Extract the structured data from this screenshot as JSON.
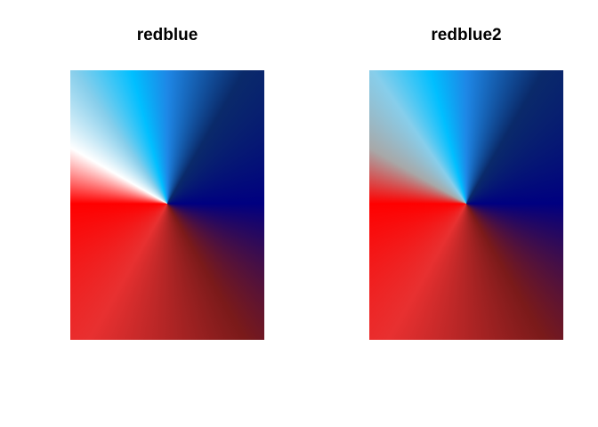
{
  "panels": [
    {
      "title": "redblue",
      "stops": [
        {
          "angle": 0,
          "color": "#1E87E6"
        },
        {
          "angle": 30,
          "color": "#0A2A6A"
        },
        {
          "angle": 90,
          "color": "#000080"
        },
        {
          "angle": 150,
          "color": "#7A1A1A"
        },
        {
          "angle": 210,
          "color": "#E83030"
        },
        {
          "angle": 270,
          "color": "#FF0000"
        },
        {
          "angle": 300,
          "color": "#FFFFFF"
        },
        {
          "angle": 325,
          "color": "#87CEEB"
        },
        {
          "angle": 345,
          "color": "#00BFFF"
        },
        {
          "angle": 360,
          "color": "#1E87E6"
        }
      ]
    },
    {
      "title": "redblue2",
      "stops": [
        {
          "angle": 0,
          "color": "#1E87E6"
        },
        {
          "angle": 30,
          "color": "#0A2A6A"
        },
        {
          "angle": 90,
          "color": "#000080"
        },
        {
          "angle": 150,
          "color": "#7A1A1A"
        },
        {
          "angle": 210,
          "color": "#E83030"
        },
        {
          "angle": 270,
          "color": "#FF0000"
        },
        {
          "angle": 300,
          "color": "#A8A8A8"
        },
        {
          "angle": 325,
          "color": "#87CEEB"
        },
        {
          "angle": 345,
          "color": "#00BFFF"
        },
        {
          "angle": 360,
          "color": "#1E87E6"
        }
      ]
    }
  ]
}
